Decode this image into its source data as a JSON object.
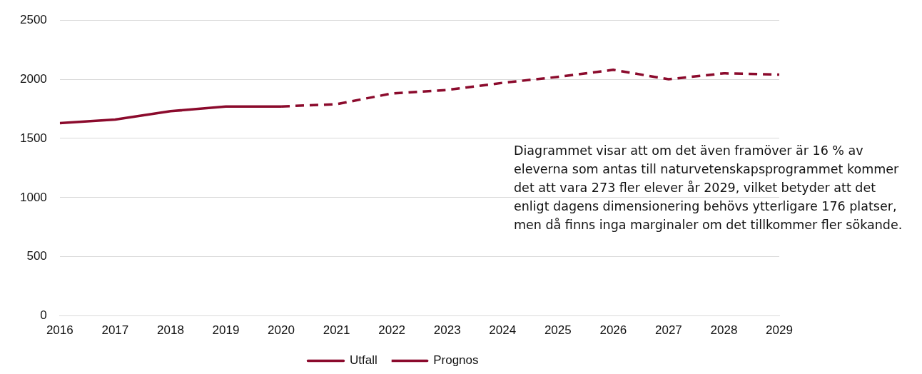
{
  "chart_data": {
    "type": "line",
    "series": [
      {
        "name": "Utfall",
        "color": "#8b0a2c",
        "line_style": "solid",
        "x": [
          2016,
          2017,
          2018,
          2019,
          2020
        ],
        "values": [
          1630,
          1660,
          1730,
          1770,
          1770
        ]
      },
      {
        "name": "Prognos",
        "color": "#8b0a2c",
        "line_style": "dashed",
        "x": [
          2020,
          2021,
          2022,
          2023,
          2024,
          2025,
          2026,
          2027,
          2028,
          2029
        ],
        "values": [
          1770,
          1790,
          1880,
          1910,
          1970,
          2020,
          2080,
          2000,
          2050,
          2040
        ]
      }
    ],
    "xlim": [
      2016,
      2029
    ],
    "xticks": [
      2016,
      2017,
      2018,
      2019,
      2020,
      2021,
      2022,
      2023,
      2024,
      2025,
      2026,
      2027,
      2028,
      2029
    ],
    "ylim": [
      0,
      2500
    ],
    "yticks": [
      0,
      500,
      1000,
      1500,
      2000,
      2500
    ],
    "grid": "y",
    "legend": "bottom",
    "marker": "none",
    "annotations": [
      "Diagrammet visar att om det även framöver är 16 % av eleverna som antas till naturvetenskapsprogrammet kommer det att vara 273 fler elever år 2029, vilket betyder att det enligt dagens dimensionering behövs ytterligare 176 platser, men då finns inga marginaler om det tillkommer fler sökande."
    ]
  }
}
